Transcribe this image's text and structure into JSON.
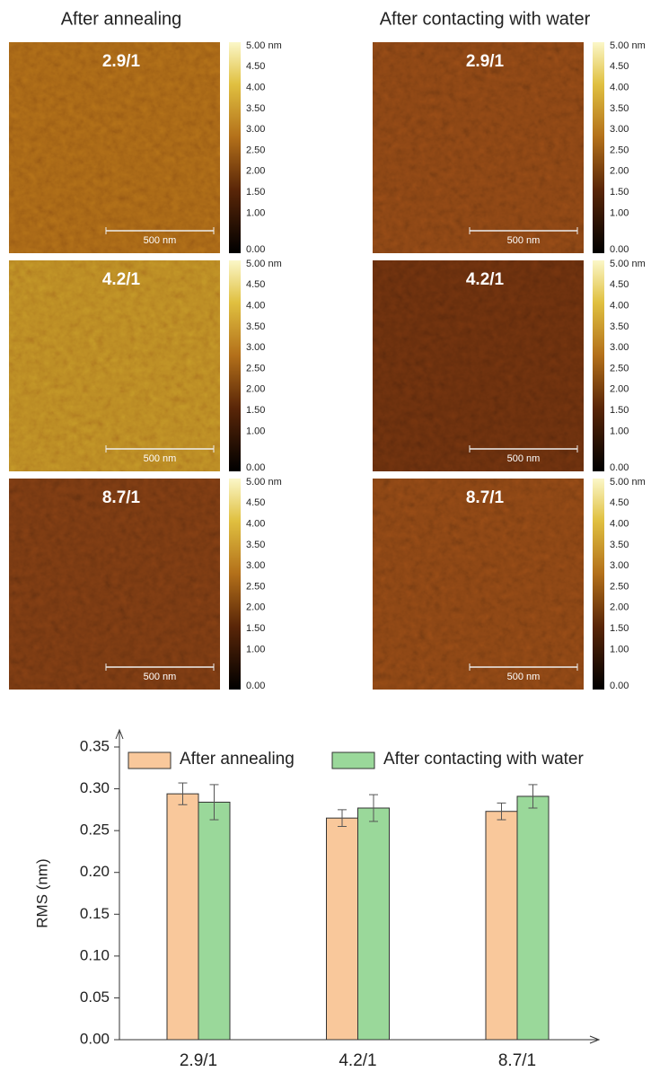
{
  "afm": {
    "column_titles": [
      "After annealing",
      "After contacting with water"
    ],
    "row_labels": [
      "2.9/1",
      "4.2/1",
      "8.7/1"
    ],
    "scale_bar": "500 nm",
    "colorbar_labels": [
      "5.00 nm",
      "4.50",
      "4.00",
      "3.50",
      "3.00",
      "2.50",
      "2.00",
      "1.50",
      "1.00",
      "0.00"
    ]
  },
  "chart_data": {
    "type": "bar",
    "y_label": "RMS (nm)",
    "categories": [
      "2.9/1",
      "4.2/1",
      "8.7/1"
    ],
    "series": [
      {
        "name": "After annealing",
        "color": "#f9c89b",
        "values": [
          0.294,
          0.265,
          0.273
        ],
        "errors": [
          0.013,
          0.01,
          0.01
        ]
      },
      {
        "name": "After contacting with water",
        "color": "#9ad89a",
        "values": [
          0.284,
          0.277,
          0.291
        ],
        "errors": [
          0.021,
          0.016,
          0.014
        ]
      }
    ],
    "ylim": [
      0,
      0.35
    ],
    "yticks": [
      {
        "value": 0,
        "label": "0.00"
      },
      {
        "value": 0.05,
        "label": "0.05"
      },
      {
        "value": 0.1,
        "label": "0.10"
      },
      {
        "value": 0.15,
        "label": "0.15"
      },
      {
        "value": 0.2,
        "label": "0.20"
      },
      {
        "value": 0.25,
        "label": "0.25"
      },
      {
        "value": 0.3,
        "label": "0.30"
      },
      {
        "value": 0.35,
        "label": "0.35"
      }
    ],
    "legend": "top"
  }
}
